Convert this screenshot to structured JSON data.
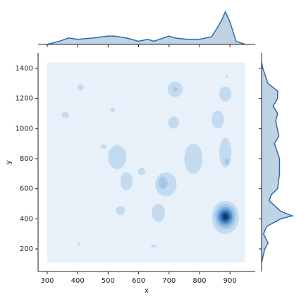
{
  "chart_data": {
    "type": "kde",
    "xlabel": "x",
    "ylabel": "y",
    "xlim": [
      270,
      983
    ],
    "ylim": [
      50,
      1503
    ],
    "xticks": [
      300,
      400,
      500,
      600,
      700,
      800,
      900
    ],
    "yticks": [
      200,
      400,
      600,
      800,
      1000,
      1200,
      1400
    ],
    "colors": [
      "#e8f1fa",
      "#c2dbf0",
      "#a3c8e8",
      "#7fb0dc",
      "#4f8ec8",
      "#2562a3",
      "#0b3a6a"
    ],
    "region": {
      "x": [
        300,
        950
      ],
      "y": [
        110,
        1440
      ]
    },
    "contours": [
      {
        "x": 410,
        "y": 1275,
        "rx": 10,
        "ry": 20,
        "level": 1
      },
      {
        "x": 360,
        "y": 1090,
        "rx": 12,
        "ry": 20,
        "level": 1
      },
      {
        "x": 515,
        "y": 1125,
        "rx": 8,
        "ry": 15,
        "level": 1
      },
      {
        "x": 720,
        "y": 1260,
        "rx": 25,
        "ry": 50,
        "level": 1
      },
      {
        "x": 720,
        "y": 1260,
        "rx": 8,
        "ry": 15,
        "level": 2
      },
      {
        "x": 885,
        "y": 1230,
        "rx": 20,
        "ry": 50,
        "level": 1
      },
      {
        "x": 530,
        "y": 810,
        "rx": 30,
        "ry": 80,
        "level": 1
      },
      {
        "x": 560,
        "y": 650,
        "rx": 20,
        "ry": 60,
        "level": 1
      },
      {
        "x": 610,
        "y": 715,
        "rx": 12,
        "ry": 25,
        "level": 1
      },
      {
        "x": 715,
        "y": 1040,
        "rx": 18,
        "ry": 40,
        "level": 1
      },
      {
        "x": 690,
        "y": 630,
        "rx": 35,
        "ry": 80,
        "level": 1
      },
      {
        "x": 680,
        "y": 640,
        "rx": 15,
        "ry": 40,
        "level": 2
      },
      {
        "x": 665,
        "y": 440,
        "rx": 22,
        "ry": 60,
        "level": 1
      },
      {
        "x": 540,
        "y": 455,
        "rx": 15,
        "ry": 30,
        "level": 1
      },
      {
        "x": 780,
        "y": 800,
        "rx": 30,
        "ry": 100,
        "level": 1
      },
      {
        "x": 860,
        "y": 1060,
        "rx": 20,
        "ry": 60,
        "level": 1
      },
      {
        "x": 885,
        "y": 840,
        "rx": 20,
        "ry": 100,
        "level": 1
      },
      {
        "x": 890,
        "y": 780,
        "rx": 8,
        "ry": 20,
        "level": 2
      },
      {
        "x": 650,
        "y": 220,
        "rx": 10,
        "ry": 10,
        "level": 1
      },
      {
        "x": 405,
        "y": 235,
        "rx": 5,
        "ry": 10,
        "level": 1
      },
      {
        "x": 890,
        "y": 1345,
        "rx": 4,
        "ry": 8,
        "level": 1
      },
      {
        "x": 485,
        "y": 880,
        "rx": 10,
        "ry": 15,
        "level": 1
      },
      {
        "x": 885,
        "y": 410,
        "rx": 45,
        "ry": 110,
        "level": 1
      },
      {
        "x": 885,
        "y": 415,
        "rx": 35,
        "ry": 85,
        "level": 2
      },
      {
        "x": 885,
        "y": 415,
        "rx": 28,
        "ry": 65,
        "level": 3
      },
      {
        "x": 885,
        "y": 415,
        "rx": 22,
        "ry": 50,
        "level": 4
      },
      {
        "x": 885,
        "y": 415,
        "rx": 15,
        "ry": 35,
        "level": 5
      },
      {
        "x": 885,
        "y": 415,
        "rx": 8,
        "ry": 20,
        "level": 6
      }
    ],
    "marginal_color": "#2b6ca8",
    "density_lim": [
      0,
      55
    ],
    "x_density": {
      "x": [
        300,
        340,
        370,
        400,
        450,
        500,
        520,
        560,
        600,
        630,
        650,
        700,
        720,
        760,
        800,
        840,
        870,
        885,
        900,
        920,
        950
      ],
      "values": [
        0,
        5,
        10,
        8,
        10,
        13,
        13,
        10,
        5,
        8,
        5,
        13,
        10,
        8,
        8,
        12,
        35,
        51,
        35,
        5,
        0
      ]
    },
    "y_density": {
      "y": [
        110,
        200,
        240,
        300,
        350,
        400,
        420,
        450,
        520,
        560,
        600,
        700,
        800,
        900,
        950,
        1050,
        1100,
        1150,
        1200,
        1250,
        1300,
        1400,
        1440
      ],
      "values": [
        0,
        5,
        10,
        3,
        8,
        30,
        48,
        30,
        12,
        15,
        25,
        28,
        28,
        20,
        27,
        22,
        25,
        18,
        25,
        25,
        10,
        2,
        0
      ]
    }
  }
}
